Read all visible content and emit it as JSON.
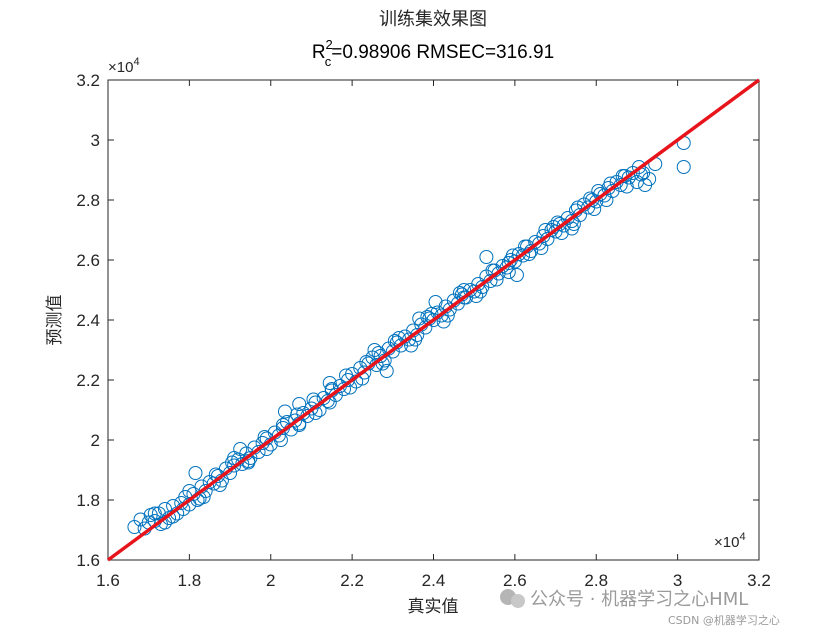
{
  "chart_data": {
    "type": "scatter",
    "title": "训练集效果图",
    "subtitle": {
      "r_main": "R",
      "r_sup": "2",
      "r_sub": "c",
      "rest": "=0.98906  RMSEC=316.91"
    },
    "xlabel": "真实值",
    "ylabel": "预测值",
    "xlim": [
      16000,
      32000
    ],
    "ylim": [
      16000,
      32000
    ],
    "x_ticks": [
      "1.6",
      "1.8",
      "2",
      "2.2",
      "2.4",
      "2.6",
      "2.8",
      "3",
      "3.2"
    ],
    "y_ticks": [
      "1.6",
      "1.8",
      "2",
      "2.2",
      "2.4",
      "2.6",
      "2.8",
      "3",
      "3.2"
    ],
    "x_exponent": {
      "base": "×10",
      "power": "4"
    },
    "y_exponent": {
      "base": "×10",
      "power": "4"
    },
    "grid": false,
    "marker": "open-circle",
    "marker_color": "#0072BD",
    "line_color": "#E8141B",
    "fit_line": {
      "x": [
        16000,
        32000
      ],
      "y": [
        16000,
        32000
      ]
    },
    "series": [
      {
        "x": [
          16650,
          16800,
          16900,
          17000,
          17050,
          17150,
          17250,
          17300,
          17400,
          17500,
          17600,
          17700,
          17800,
          17900,
          18000,
          18100,
          18200,
          18300,
          18400,
          18500,
          18600,
          18700,
          18800,
          18900,
          19000,
          19100,
          19200,
          19300,
          19400,
          19500,
          19600,
          19700,
          19800,
          19900,
          20000,
          20100,
          20200,
          20300,
          20400,
          20500,
          20600,
          20700,
          20800,
          20900,
          21000,
          21100,
          21200,
          21300,
          21400,
          21500,
          21600,
          21700,
          21800,
          21900,
          22000,
          22100,
          22200,
          22300,
          22400,
          22500,
          22600,
          22700,
          22800,
          22900,
          23000,
          23100,
          23200,
          23300,
          23400,
          23500,
          23600,
          23700,
          23800,
          23900,
          24000,
          24100,
          24200,
          24300,
          24400,
          24500,
          24600,
          24700,
          24800,
          24900,
          25000,
          25100,
          25200,
          25300,
          25400,
          25500,
          25600,
          25700,
          25800,
          25900,
          26000,
          26100,
          26200,
          26300,
          26400,
          26500,
          26600,
          26700,
          26800,
          26900,
          27000,
          27100,
          27200,
          27300,
          27400,
          27500,
          27600,
          27700,
          27800,
          27900,
          28000,
          28100,
          28200,
          28300,
          28400,
          28500,
          28600,
          28700,
          28800,
          28900,
          29000,
          29100,
          29200,
          29300,
          17150,
          17600,
          18000,
          18350,
          18750,
          19100,
          19450,
          19850,
          20250,
          20650,
          21050,
          21450,
          21850,
          22250,
          22650,
          23050,
          23450,
          23850,
          24250,
          24650,
          25050,
          25450,
          25850,
          26250,
          26650,
          27050,
          27450,
          27850,
          28250,
          28650,
          29050,
          17400,
          17850,
          18250,
          18650,
          19050,
          19450,
          19900,
          20300,
          20700,
          21100,
          21500,
          21950,
          22350,
          22750,
          23150,
          23550,
          23950,
          24350,
          24750,
          25150,
          25550,
          25950,
          26350,
          26750,
          27150,
          27550,
          27950,
          28350,
          28750,
          18150,
          19250,
          20350,
          21450,
          22550,
          23650,
          24750,
          25850,
          26950,
          28050,
          29150,
          30150,
          30150,
          29450,
          20700,
          22850,
          24050,
          26050,
          27400,
          25300
        ],
        "y": [
          17100,
          17350,
          17050,
          17250,
          17500,
          17300,
          17550,
          17200,
          17700,
          17400,
          17800,
          17550,
          17900,
          18100,
          17850,
          18200,
          18000,
          18450,
          18300,
          18600,
          18550,
          18800,
          18650,
          19050,
          18900,
          19150,
          19350,
          19200,
          19550,
          19400,
          19750,
          19600,
          19900,
          20050,
          19850,
          20250,
          20150,
          20400,
          20600,
          20350,
          20650,
          20500,
          20900,
          20800,
          21050,
          21250,
          21000,
          21400,
          21300,
          21650,
          21500,
          21800,
          21700,
          22000,
          22200,
          21950,
          22400,
          22250,
          22550,
          22750,
          22500,
          22800,
          22650,
          23050,
          22950,
          23250,
          23150,
          23450,
          23350,
          23650,
          23500,
          23850,
          23750,
          24050,
          24000,
          24250,
          24150,
          24450,
          24350,
          24650,
          24550,
          24850,
          24750,
          25000,
          24950,
          25200,
          25100,
          25450,
          25300,
          25650,
          25550,
          25800,
          25750,
          26000,
          25950,
          26200,
          26150,
          26450,
          26300,
          26600,
          26550,
          26800,
          26700,
          27000,
          26950,
          27200,
          27150,
          27400,
          27300,
          27650,
          27500,
          27850,
          27750,
          28000,
          27950,
          28200,
          28150,
          28400,
          28300,
          28600,
          28500,
          28800,
          28750,
          28900,
          28600,
          28850,
          28500,
          28700,
          17550,
          17450,
          18300,
          18100,
          18500,
          19400,
          19300,
          20100,
          20000,
          20850,
          21350,
          21250,
          22150,
          22050,
          22900,
          23300,
          23150,
          24100,
          23950,
          24900,
          24800,
          25650,
          25600,
          26450,
          26400,
          27250,
          27200,
          28050,
          28000,
          28800,
          29100,
          17250,
          17700,
          18050,
          18850,
          19250,
          19250,
          19700,
          20500,
          20550,
          20900,
          21700,
          21750,
          22600,
          22550,
          23400,
          23350,
          24200,
          24150,
          25000,
          24950,
          25350,
          26150,
          26200,
          27000,
          26900,
          27750,
          27700,
          28550,
          28450,
          18900,
          19700,
          20950,
          21900,
          23000,
          24050,
          24750,
          25900,
          27100,
          28300,
          28900,
          29900,
          29100,
          29200,
          21200,
          22300,
          24600,
          25500,
          27050,
          26100
        ]
      }
    ]
  },
  "watermark": {
    "wechat": "公众号 · 机器学习之心HML",
    "csdn": "CSDN @机器学习之心"
  }
}
